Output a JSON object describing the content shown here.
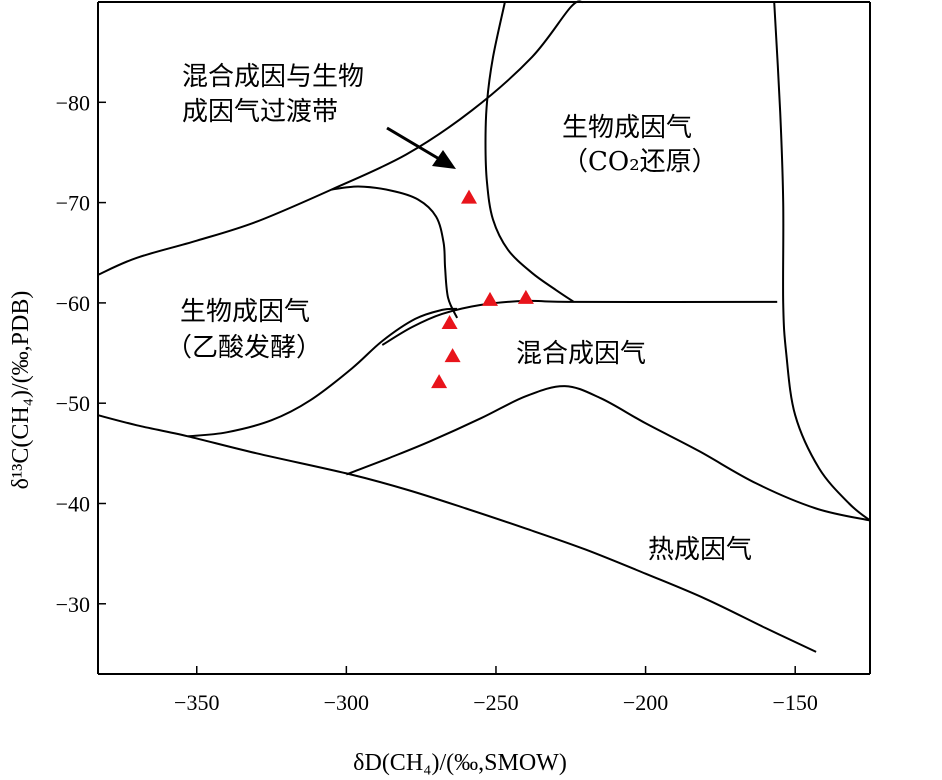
{
  "chart_data": {
    "type": "scatter",
    "xlabel": "δD(CH₄)/(‰,SMOW)",
    "ylabel": "δ¹³C(CH₄)/(‰,PDB)",
    "xlim": [
      -383,
      -125
    ],
    "ylim": [
      -90,
      -23
    ],
    "y_axis_reversed": true,
    "x_ticks": [
      {
        "value": -350,
        "label": "−350"
      },
      {
        "value": -300,
        "label": "−300"
      },
      {
        "value": -250,
        "label": "−250"
      },
      {
        "value": -200,
        "label": "−200"
      },
      {
        "value": -150,
        "label": "−150"
      }
    ],
    "y_ticks": [
      {
        "value": -80,
        "label": "−80"
      },
      {
        "value": -70,
        "label": "−70"
      },
      {
        "value": -60,
        "label": "−60"
      },
      {
        "value": -50,
        "label": "−50"
      },
      {
        "value": -40,
        "label": "−40"
      },
      {
        "value": -30,
        "label": "−30"
      }
    ],
    "marker_color": "#e8141b",
    "marker_shape": "triangle",
    "points": [
      {
        "x": -259,
        "y": -70.5
      },
      {
        "x": -252,
        "y": -60.3
      },
      {
        "x": -240,
        "y": -60.5
      },
      {
        "x": -265.5,
        "y": -58.0
      },
      {
        "x": -264.5,
        "y": -54.7
      },
      {
        "x": -269,
        "y": -52.1
      }
    ],
    "region_labels": [
      {
        "name": "transition",
        "lines": [
          "混合成因与生物",
          "成因气过渡带"
        ]
      },
      {
        "name": "co2-reduction",
        "lines": [
          "生物成因气",
          "（CO₂还原）"
        ]
      },
      {
        "name": "acetate-fermentation",
        "lines": [
          "生物成因气",
          "（乙酸发酵）"
        ]
      },
      {
        "name": "mixed",
        "lines": [
          "混合成因气"
        ]
      },
      {
        "name": "thermogenic",
        "lines": [
          "热成因气"
        ]
      }
    ],
    "boundaries": [
      {
        "name": "upper-arc",
        "points": [
          [
            -383,
            -62.8
          ],
          [
            -370,
            -64.5
          ],
          [
            -350,
            -66.2
          ],
          [
            -330,
            -68.1
          ],
          [
            -305,
            -71.3
          ],
          [
            -280,
            -74.8
          ],
          [
            -258,
            -79.2
          ],
          [
            -238,
            -84.5
          ],
          [
            -225,
            -89.5
          ],
          [
            -221,
            -90
          ]
        ]
      },
      {
        "name": "acetate-inner-top",
        "points": [
          [
            -305,
            -71.3
          ],
          [
            -296,
            -71.6
          ],
          [
            -285,
            -71.2
          ],
          [
            -276,
            -70.3
          ],
          [
            -270,
            -68.6
          ],
          [
            -267.5,
            -66
          ],
          [
            -267,
            -63.5
          ],
          [
            -266,
            -60.5
          ],
          [
            -263,
            -58.5
          ]
        ]
      },
      {
        "name": "acetate-inner-lower",
        "points": [
          [
            -353,
            -46.7
          ],
          [
            -340,
            -47.1
          ],
          [
            -325,
            -48.3
          ],
          [
            -312,
            -50.3
          ],
          [
            -298,
            -53.5
          ],
          [
            -288,
            -56.2
          ],
          [
            -277,
            -58.4
          ],
          [
            -268,
            -59.3
          ],
          [
            -263,
            -59.4
          ]
        ]
      },
      {
        "name": "co2-left-curve",
        "points": [
          [
            -247,
            -90
          ],
          [
            -251,
            -84.5
          ],
          [
            -253,
            -80
          ],
          [
            -253.5,
            -76
          ],
          [
            -253,
            -72
          ],
          [
            -251,
            -68.3
          ],
          [
            -246,
            -65.3
          ],
          [
            -238,
            -63
          ],
          [
            -230,
            -61.3
          ],
          [
            -224,
            -60.1
          ]
        ]
      },
      {
        "name": "mixed-top",
        "points": [
          [
            -288,
            -55.8
          ],
          [
            -278,
            -57.6
          ],
          [
            -268,
            -58.9
          ],
          [
            -255,
            -59.8
          ],
          [
            -240,
            -60.2
          ],
          [
            -224,
            -60.1
          ],
          [
            -156,
            -60.1
          ]
        ]
      },
      {
        "name": "right-curve",
        "points": [
          [
            -157,
            -90
          ],
          [
            -155,
            -79
          ],
          [
            -154,
            -70
          ],
          [
            -154,
            -60
          ],
          [
            -153,
            -55
          ],
          [
            -150,
            -48.8
          ],
          [
            -142,
            -43.5
          ],
          [
            -132,
            -40
          ],
          [
            -125,
            -38.3
          ]
        ]
      },
      {
        "name": "thermo-top",
        "points": [
          [
            -300,
            -42.9
          ],
          [
            -286,
            -44.5
          ],
          [
            -272,
            -46.2
          ],
          [
            -255,
            -48.5
          ],
          [
            -240,
            -50.7
          ],
          [
            -227,
            -51.7
          ],
          [
            -215,
            -50.5
          ],
          [
            -200,
            -48
          ],
          [
            -182,
            -45.2
          ],
          [
            -163,
            -42
          ],
          [
            -143,
            -39.5
          ],
          [
            -125,
            -38.3
          ]
        ]
      },
      {
        "name": "left-boundary",
        "points": [
          [
            -383,
            -48.8
          ],
          [
            -370,
            -47.8
          ],
          [
            -353,
            -46.7
          ],
          [
            -330,
            -45
          ],
          [
            -300,
            -43
          ],
          [
            -280,
            -41.4
          ],
          [
            -260,
            -39.5
          ],
          [
            -240,
            -37.5
          ],
          [
            -220,
            -35.4
          ],
          [
            -200,
            -33
          ],
          [
            -180,
            -30.5
          ],
          [
            -160,
            -27.6
          ],
          [
            -143,
            -25.2
          ]
        ]
      }
    ]
  }
}
